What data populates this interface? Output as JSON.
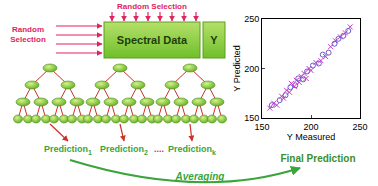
{
  "diagram": {
    "top_label": "Random Selection",
    "left_label": "Random Selection",
    "data_box": "Spectral Data",
    "y_box": "Y",
    "predictions": [
      {
        "text": "Prediction",
        "sub": "1"
      },
      {
        "text": "Prediction",
        "sub": "2"
      },
      {
        "text": "Prediction",
        "sub": "k"
      }
    ],
    "separator": "....",
    "averaging": "Averaging",
    "final": "Final Prediction"
  },
  "chart_data": {
    "type": "scatter",
    "xlabel": "Y Measured",
    "ylabel": "Y Predicted",
    "xlim": [
      150,
      250
    ],
    "ylim": [
      150,
      250
    ],
    "xticks": [
      150,
      200,
      250
    ],
    "yticks": [
      150,
      200,
      250
    ],
    "grid": false,
    "series": [
      {
        "color": "#cc33cc",
        "marker": "x",
        "x": [
          158,
          162,
          165,
          170,
          172,
          175,
          178,
          180,
          183,
          185,
          188,
          190,
          193,
          195,
          198,
          200,
          205,
          210,
          215,
          220,
          225,
          230,
          235,
          240
        ],
        "values": [
          160,
          165,
          163,
          172,
          170,
          178,
          176,
          185,
          182,
          188,
          186,
          192,
          195,
          190,
          200,
          198,
          206,
          208,
          212,
          222,
          228,
          232,
          236,
          242
        ]
      },
      {
        "color": "#6a5acd",
        "marker": "circle",
        "x": [
          160,
          168,
          174,
          179,
          184,
          187,
          192,
          196,
          202,
          208,
          212,
          218,
          224,
          228,
          233,
          238
        ],
        "values": [
          163,
          168,
          173,
          181,
          183,
          190,
          189,
          197,
          203,
          205,
          214,
          216,
          225,
          230,
          233,
          238
        ]
      }
    ]
  }
}
